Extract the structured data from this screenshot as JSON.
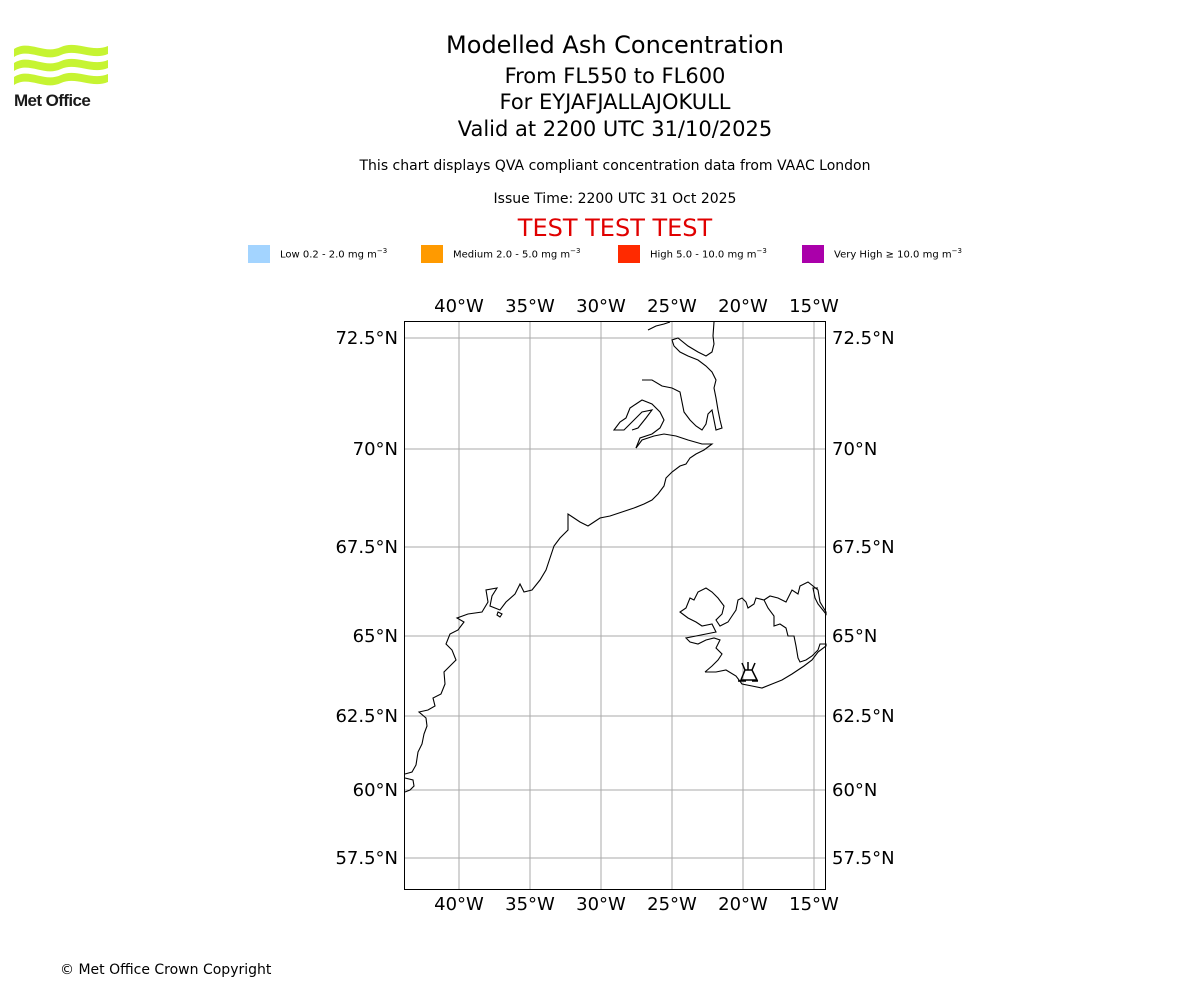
{
  "logo": {
    "text": "Met Office",
    "color": "#c6f432"
  },
  "header": {
    "title": "Modelled Ash Concentration",
    "level": "From FL550 to FL600",
    "volcano": "For EYJAFJALLAJOKULL",
    "valid": "Valid at 2200 UTC 31/10/2025",
    "description": "This chart displays QVA compliant concentration data from VAAC London",
    "issue_time": "Issue Time: 2200 UTC 31 Oct 2025",
    "test_banner": "TEST TEST TEST",
    "test_color": "#e00000"
  },
  "legend": [
    {
      "label": "Low 0.2 - 2.0 mg m",
      "sup": "−3",
      "color": "#a3d4ff"
    },
    {
      "label": "Medium 2.0 - 5.0 mg m",
      "sup": "−3",
      "color": "#ff9a00"
    },
    {
      "label": "High 5.0 - 10.0 mg m",
      "sup": "−3",
      "color": "#ff2a00"
    },
    {
      "label": "Very High  ≥  10.0 mg m",
      "sup": "−3",
      "color": "#aa00aa"
    }
  ],
  "map": {
    "lon_ticks": [
      "40°W",
      "35°W",
      "30°W",
      "25°W",
      "20°W",
      "15°W"
    ],
    "lat_ticks": [
      "72.5°N",
      "70°N",
      "67.5°N",
      "65°N",
      "62.5°N",
      "60°N",
      "57.5°N"
    ],
    "volcano_marker": "volcano-icon"
  },
  "footer": {
    "copyright": "© Met Office Crown Copyright"
  }
}
